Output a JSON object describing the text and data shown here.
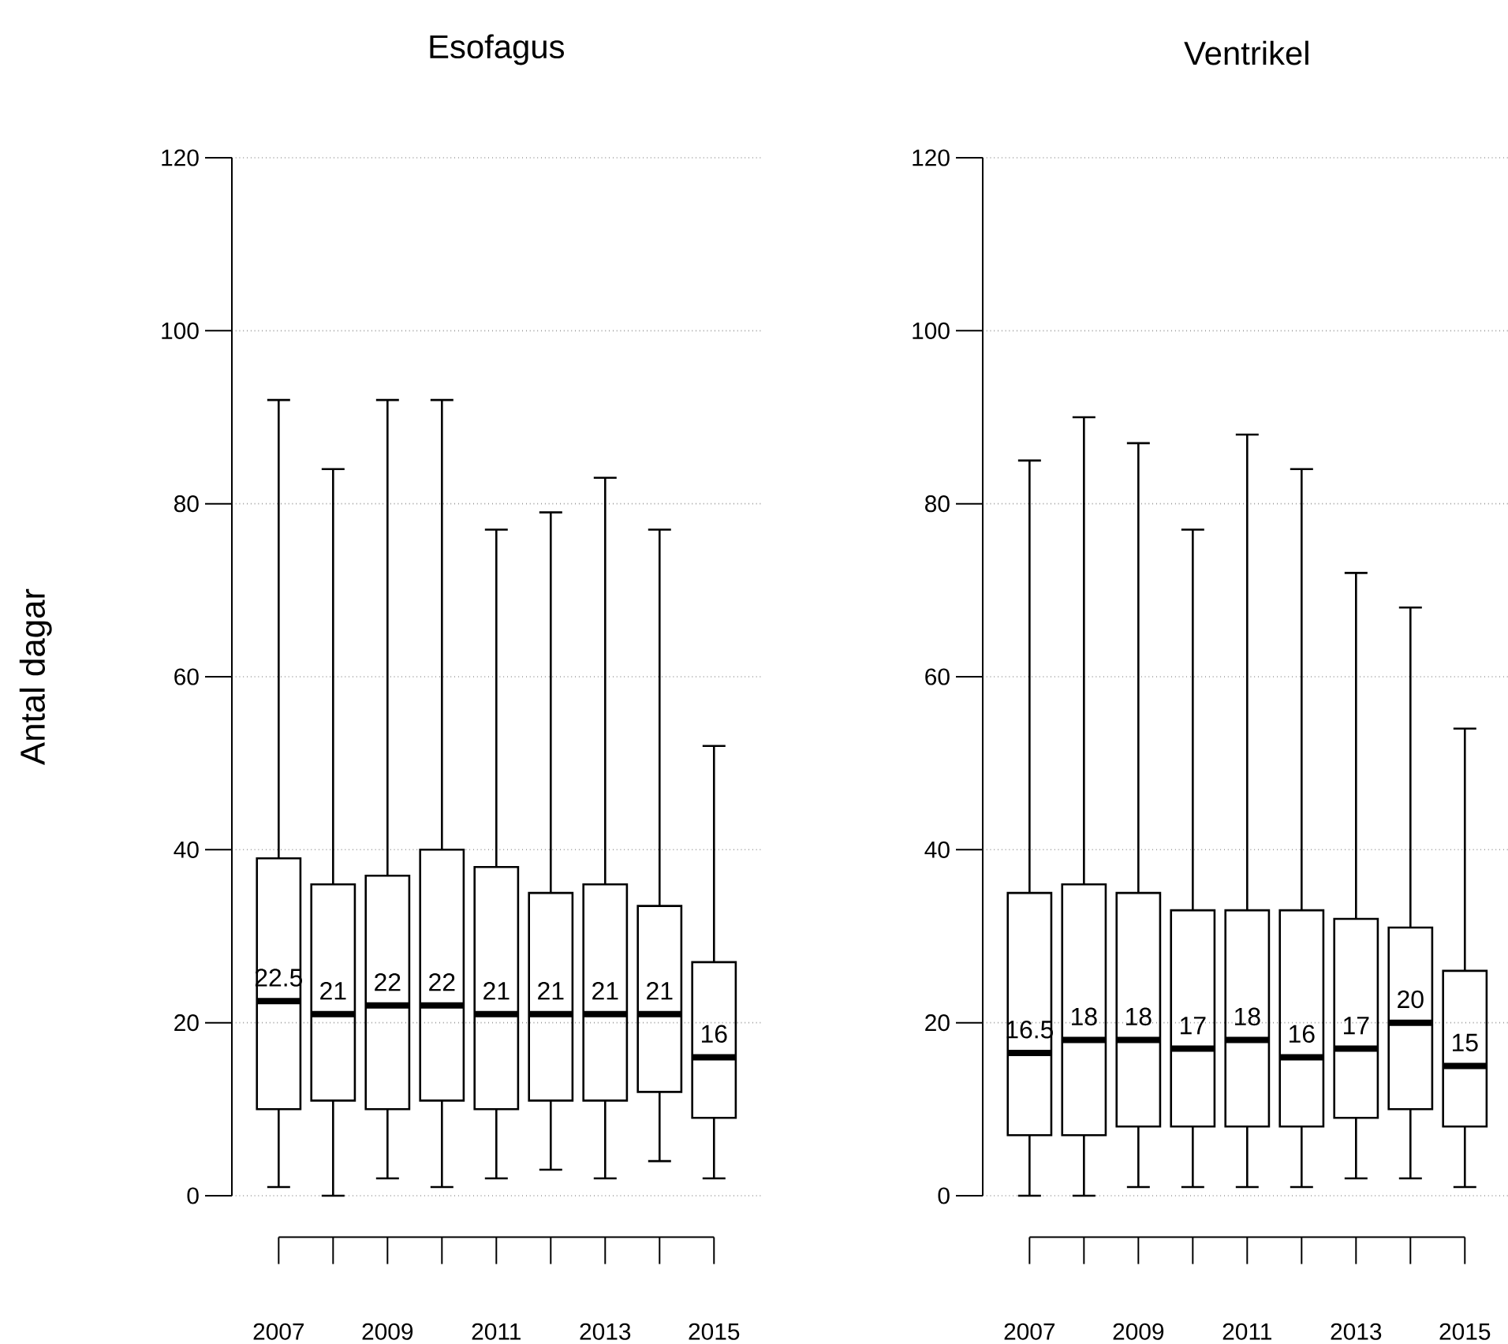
{
  "chart_data": [
    {
      "type": "box",
      "title": "Esofagus",
      "ylabel": "Antal dagar",
      "categories": [
        "2007",
        null,
        "2009",
        null,
        "2011",
        null,
        "2013",
        null,
        "2015"
      ],
      "boxes": [
        {
          "low": 1,
          "q1": 10,
          "median": 22.5,
          "q3": 39,
          "high": 92
        },
        {
          "low": 0,
          "q1": 11,
          "median": 21,
          "q3": 36,
          "high": 84
        },
        {
          "low": 2,
          "q1": 10,
          "median": 22,
          "q3": 37,
          "high": 92
        },
        {
          "low": 1,
          "q1": 11,
          "median": 22,
          "q3": 40,
          "high": 92
        },
        {
          "low": 2,
          "q1": 10,
          "median": 21,
          "q3": 38,
          "high": 77
        },
        {
          "low": 3,
          "q1": 11,
          "median": 21,
          "q3": 35,
          "high": 79
        },
        {
          "low": 2,
          "q1": 11,
          "median": 21,
          "q3": 36,
          "high": 83
        },
        {
          "low": 4,
          "q1": 12,
          "median": 21,
          "q3": 33.5,
          "high": 77
        },
        {
          "low": 2,
          "q1": 9,
          "median": 16,
          "q3": 27,
          "high": 52
        }
      ],
      "annotations": [
        {
          "text": "22.5",
          "y": 22.5
        },
        {
          "text": "21",
          "y": 21
        },
        {
          "text": "22",
          "y": 22
        },
        {
          "text": "22",
          "y": 22
        },
        {
          "text": "21",
          "y": 21
        },
        {
          "text": "21",
          "y": 21
        },
        {
          "text": "21",
          "y": 21
        },
        {
          "text": "21",
          "y": 21
        },
        {
          "text": "16",
          "y": 16
        }
      ],
      "ylim": [
        0,
        120
      ],
      "yticks": [
        0,
        20,
        40,
        60,
        80,
        100,
        120
      ],
      "grid": "y"
    },
    {
      "type": "box",
      "title": "Ventrikel",
      "categories": [
        "2007",
        null,
        "2009",
        null,
        "2011",
        null,
        "2013",
        null,
        "2015"
      ],
      "boxes": [
        {
          "low": 0,
          "q1": 7,
          "median": 16.5,
          "q3": 35,
          "high": 85
        },
        {
          "low": 0,
          "q1": 7,
          "median": 18,
          "q3": 36,
          "high": 90
        },
        {
          "low": 1,
          "q1": 8,
          "median": 18,
          "q3": 35,
          "high": 87
        },
        {
          "low": 1,
          "q1": 8,
          "median": 17,
          "q3": 33,
          "high": 77
        },
        {
          "low": 1,
          "q1": 8,
          "median": 18,
          "q3": 33,
          "high": 88
        },
        {
          "low": 1,
          "q1": 8,
          "median": 16,
          "q3": 33,
          "high": 84
        },
        {
          "low": 2,
          "q1": 9,
          "median": 17,
          "q3": 32,
          "high": 72
        },
        {
          "low": 2,
          "q1": 10,
          "median": 20,
          "q3": 31,
          "high": 68
        },
        {
          "low": 1,
          "q1": 8,
          "median": 15,
          "q3": 26,
          "high": 54
        }
      ],
      "annotations": [
        {
          "text": "16.5",
          "y": 16.5
        },
        {
          "text": "18",
          "y": 18
        },
        {
          "text": "18",
          "y": 18
        },
        {
          "text": "17",
          "y": 17
        },
        {
          "text": "18",
          "y": 18
        },
        {
          "text": "16",
          "y": 16
        },
        {
          "text": "17",
          "y": 17
        },
        {
          "text": "20",
          "y": 20
        },
        {
          "text": "15",
          "y": 15
        }
      ],
      "ylim": [
        0,
        120
      ],
      "yticks": [
        0,
        20,
        40,
        60,
        80,
        100,
        120
      ],
      "grid": "y"
    }
  ]
}
